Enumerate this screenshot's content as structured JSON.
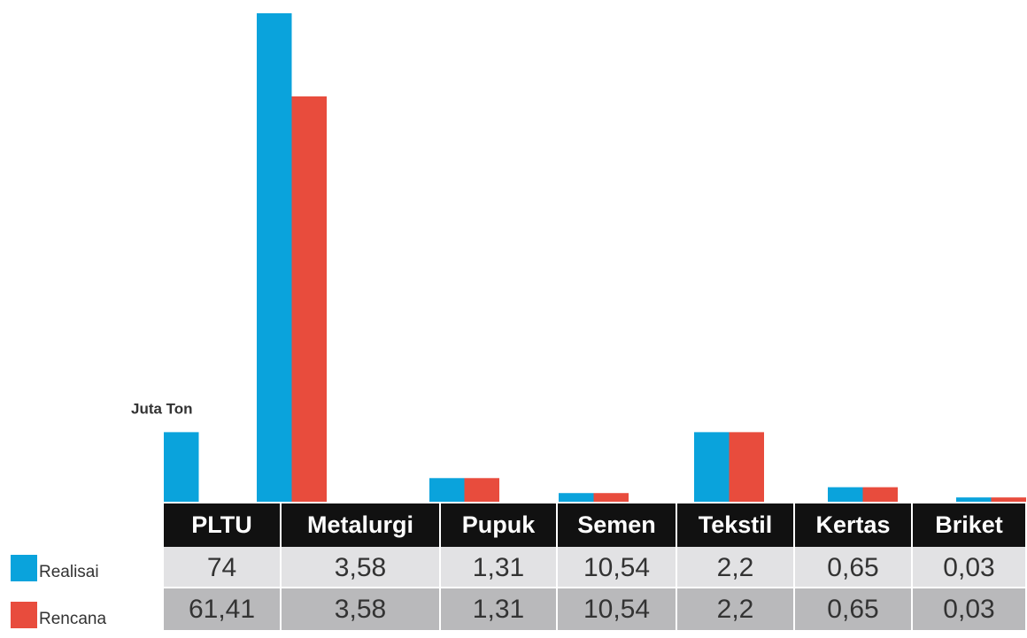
{
  "chart_data": {
    "type": "bar",
    "unit_label": "Juta Ton",
    "categories": [
      "PLTU",
      "Metalurgi",
      "Pupuk",
      "Semen",
      "Tekstil",
      "Kertas",
      "Briket"
    ],
    "series": [
      {
        "name": "Realisai",
        "color": "#0aa3dc",
        "values": [
          74,
          3.58,
          1.31,
          10.54,
          2.2,
          0.65,
          0.03
        ],
        "value_labels": [
          "74",
          "3,58",
          "1,31",
          "10,54",
          "2,2",
          "0,65",
          "0,03"
        ]
      },
      {
        "name": "Rencana",
        "color": "#e84c3d",
        "values": [
          61.41,
          3.58,
          1.31,
          10.54,
          2.2,
          0.65,
          0.03
        ],
        "value_labels": [
          "61,41",
          "3,58",
          "1,31",
          "10,54",
          "2,2",
          "0,65",
          "0,03"
        ]
      }
    ]
  }
}
